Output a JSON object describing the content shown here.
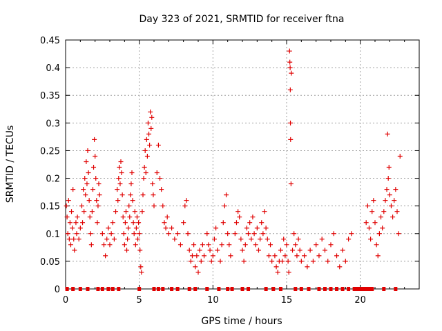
{
  "chart_data": {
    "type": "scatter",
    "title": "Day 323 of 2021, SRMTID for receiver ftna",
    "xlabel": "GPS time / hours",
    "ylabel": "SRMTID / TECUs",
    "xlim": [
      0,
      24
    ],
    "ylim": [
      0,
      0.45
    ],
    "xticks": [
      0,
      5,
      10,
      15,
      20
    ],
    "yticks": [
      0,
      0.05,
      0.1,
      0.15,
      0.2,
      0.25,
      0.3,
      0.35,
      0.4,
      0.45
    ],
    "ytick_labels": [
      "0",
      "0.05",
      "0.1",
      "0.15",
      "0.2",
      "0.25",
      "0.3",
      "0.35",
      "0.4",
      "0.45"
    ],
    "grid": true,
    "marker": "plus",
    "color": "#e00000",
    "series": [
      {
        "values": [
          [
            0.05,
            0.15
          ],
          [
            0.1,
            0.13
          ],
          [
            0.15,
            0.1
          ],
          [
            0.2,
            0.16
          ],
          [
            0.25,
            0.09
          ],
          [
            0.3,
            0.12
          ],
          [
            0.35,
            0.08
          ],
          [
            0.4,
            0.14
          ],
          [
            0.45,
            0.11
          ],
          [
            0.5,
            0.18
          ],
          [
            0.55,
            0.09
          ],
          [
            0.6,
            0.07
          ],
          [
            0.7,
            0.12
          ],
          [
            0.75,
            0.1
          ],
          [
            0.8,
            0.13
          ],
          [
            0.9,
            0.09
          ],
          [
            1.0,
            0.11
          ],
          [
            1.1,
            0.15
          ],
          [
            1.15,
            0.12
          ],
          [
            1.2,
            0.18
          ],
          [
            1.25,
            0.14
          ],
          [
            1.3,
            0.2
          ],
          [
            1.35,
            0.17
          ],
          [
            1.4,
            0.23
          ],
          [
            1.45,
            0.19
          ],
          [
            1.5,
            0.25
          ],
          [
            1.55,
            0.21
          ],
          [
            1.6,
            0.16
          ],
          [
            1.65,
            0.13
          ],
          [
            1.7,
            0.1
          ],
          [
            1.75,
            0.08
          ],
          [
            1.8,
            0.14
          ],
          [
            1.85,
            0.18
          ],
          [
            1.9,
            0.22
          ],
          [
            1.95,
            0.27
          ],
          [
            2.0,
            0.24
          ],
          [
            2.05,
            0.2
          ],
          [
            2.1,
            0.16
          ],
          [
            2.15,
            0.12
          ],
          [
            2.2,
            0.15
          ],
          [
            2.25,
            0.19
          ],
          [
            2.3,
            0.17
          ],
          [
            2.5,
            0.1
          ],
          [
            2.6,
            0.08
          ],
          [
            2.7,
            0.06
          ],
          [
            2.8,
            0.09
          ],
          [
            2.9,
            0.11
          ],
          [
            3.0,
            0.08
          ],
          [
            3.1,
            0.1
          ],
          [
            3.2,
            0.12
          ],
          [
            3.3,
            0.09
          ],
          [
            3.4,
            0.14
          ],
          [
            3.5,
            0.18
          ],
          [
            3.55,
            0.16
          ],
          [
            3.6,
            0.2
          ],
          [
            3.65,
            0.22
          ],
          [
            3.7,
            0.19
          ],
          [
            3.75,
            0.23
          ],
          [
            3.8,
            0.21
          ],
          [
            3.85,
            0.17
          ],
          [
            3.9,
            0.13
          ],
          [
            3.95,
            0.1
          ],
          [
            4.0,
            0.08
          ],
          [
            4.05,
            0.12
          ],
          [
            4.1,
            0.14
          ],
          [
            4.15,
            0.07
          ],
          [
            4.2,
            0.09
          ],
          [
            4.25,
            0.11
          ],
          [
            4.3,
            0.15
          ],
          [
            4.35,
            0.13
          ],
          [
            4.4,
            0.17
          ],
          [
            4.45,
            0.19
          ],
          [
            4.5,
            0.21
          ],
          [
            4.55,
            0.16
          ],
          [
            4.6,
            0.12
          ],
          [
            4.65,
            0.1
          ],
          [
            4.7,
            0.14
          ],
          [
            4.75,
            0.08
          ],
          [
            4.8,
            0.11
          ],
          [
            4.85,
            0.13
          ],
          [
            4.9,
            0.09
          ],
          [
            4.95,
            0.12
          ],
          [
            5.0,
            0.1
          ],
          [
            5.05,
            0.07
          ],
          [
            5.1,
            0.04
          ],
          [
            5.15,
            0.03
          ],
          [
            5.2,
            0.14
          ],
          [
            5.25,
            0.17
          ],
          [
            5.3,
            0.2
          ],
          [
            5.35,
            0.22
          ],
          [
            5.4,
            0.25
          ],
          [
            5.45,
            0.21
          ],
          [
            5.5,
            0.27
          ],
          [
            5.55,
            0.24
          ],
          [
            5.6,
            0.3
          ],
          [
            5.65,
            0.28
          ],
          [
            5.7,
            0.26
          ],
          [
            5.75,
            0.32
          ],
          [
            5.8,
            0.29
          ],
          [
            5.85,
            0.31
          ],
          [
            5.9,
            0.19
          ],
          [
            5.95,
            0.17
          ],
          [
            6.0,
            0.15
          ],
          [
            6.2,
            0.21
          ],
          [
            6.3,
            0.26
          ],
          [
            6.4,
            0.2
          ],
          [
            6.5,
            0.18
          ],
          [
            6.6,
            0.15
          ],
          [
            6.7,
            0.12
          ],
          [
            6.8,
            0.11
          ],
          [
            6.9,
            0.13
          ],
          [
            7.0,
            0.1
          ],
          [
            7.2,
            0.11
          ],
          [
            7.4,
            0.09
          ],
          [
            7.6,
            0.1
          ],
          [
            7.8,
            0.08
          ],
          [
            8.0,
            0.12
          ],
          [
            8.1,
            0.15
          ],
          [
            8.2,
            0.16
          ],
          [
            8.3,
            0.1
          ],
          [
            8.4,
            0.07
          ],
          [
            8.5,
            0.05
          ],
          [
            8.6,
            0.06
          ],
          [
            8.7,
            0.08
          ],
          [
            8.8,
            0.04
          ],
          [
            8.9,
            0.06
          ],
          [
            9.0,
            0.03
          ],
          [
            9.1,
            0.07
          ],
          [
            9.2,
            0.05
          ],
          [
            9.3,
            0.08
          ],
          [
            9.4,
            0.06
          ],
          [
            9.6,
            0.1
          ],
          [
            9.7,
            0.08
          ],
          [
            9.8,
            0.07
          ],
          [
            9.9,
            0.05
          ],
          [
            10.0,
            0.06
          ],
          [
            10.1,
            0.09
          ],
          [
            10.2,
            0.11
          ],
          [
            10.3,
            0.07
          ],
          [
            10.5,
            0.05
          ],
          [
            10.6,
            0.08
          ],
          [
            10.7,
            0.12
          ],
          [
            10.8,
            0.15
          ],
          [
            10.9,
            0.17
          ],
          [
            11.0,
            0.1
          ],
          [
            11.1,
            0.08
          ],
          [
            11.2,
            0.06
          ],
          [
            11.5,
            0.1
          ],
          [
            11.6,
            0.12
          ],
          [
            11.7,
            0.14
          ],
          [
            11.8,
            0.13
          ],
          [
            11.9,
            0.09
          ],
          [
            12.0,
            0.07
          ],
          [
            12.1,
            0.05
          ],
          [
            12.2,
            0.08
          ],
          [
            12.3,
            0.11
          ],
          [
            12.4,
            0.1
          ],
          [
            12.5,
            0.12
          ],
          [
            12.6,
            0.09
          ],
          [
            12.7,
            0.13
          ],
          [
            12.8,
            0.1
          ],
          [
            12.9,
            0.08
          ],
          [
            13.0,
            0.11
          ],
          [
            13.1,
            0.07
          ],
          [
            13.2,
            0.09
          ],
          [
            13.3,
            0.12
          ],
          [
            13.4,
            0.1
          ],
          [
            13.5,
            0.14
          ],
          [
            13.6,
            0.11
          ],
          [
            13.7,
            0.09
          ],
          [
            13.8,
            0.06
          ],
          [
            13.9,
            0.08
          ],
          [
            14.0,
            0.05
          ],
          [
            14.2,
            0.06
          ],
          [
            14.3,
            0.04
          ],
          [
            14.4,
            0.03
          ],
          [
            14.5,
            0.05
          ],
          [
            14.6,
            0.07
          ],
          [
            14.7,
            0.05
          ],
          [
            14.8,
            0.09
          ],
          [
            14.9,
            0.06
          ],
          [
            15.0,
            0.08
          ],
          [
            15.1,
            0.05
          ],
          [
            15.15,
            0.03
          ],
          [
            15.2,
            0.43
          ],
          [
            15.22,
            0.41
          ],
          [
            15.24,
            0.4
          ],
          [
            15.25,
            0.36
          ],
          [
            15.26,
            0.3
          ],
          [
            15.27,
            0.27
          ],
          [
            15.3,
            0.19
          ],
          [
            15.32,
            0.39
          ],
          [
            15.4,
            0.07
          ],
          [
            15.5,
            0.1
          ],
          [
            15.6,
            0.08
          ],
          [
            15.7,
            0.06
          ],
          [
            15.8,
            0.09
          ],
          [
            15.9,
            0.07
          ],
          [
            16.0,
            0.05
          ],
          [
            16.2,
            0.06
          ],
          [
            16.4,
            0.04
          ],
          [
            16.6,
            0.07
          ],
          [
            16.8,
            0.05
          ],
          [
            17.0,
            0.08
          ],
          [
            17.2,
            0.06
          ],
          [
            17.4,
            0.09
          ],
          [
            17.6,
            0.07
          ],
          [
            17.8,
            0.05
          ],
          [
            18.0,
            0.08
          ],
          [
            18.2,
            0.1
          ],
          [
            18.4,
            0.06
          ],
          [
            18.6,
            0.04
          ],
          [
            18.8,
            0.07
          ],
          [
            19.0,
            0.05
          ],
          [
            19.2,
            0.09
          ],
          [
            19.4,
            0.1
          ],
          [
            20.4,
            0.12
          ],
          [
            20.5,
            0.15
          ],
          [
            20.6,
            0.11
          ],
          [
            20.7,
            0.09
          ],
          [
            20.8,
            0.14
          ],
          [
            20.9,
            0.16
          ],
          [
            21.0,
            0.12
          ],
          [
            21.1,
            0.08
          ],
          [
            21.2,
            0.06
          ],
          [
            21.3,
            0.1
          ],
          [
            21.4,
            0.13
          ],
          [
            21.5,
            0.11
          ],
          [
            21.6,
            0.14
          ],
          [
            21.7,
            0.16
          ],
          [
            21.8,
            0.18
          ],
          [
            21.85,
            0.28
          ],
          [
            21.9,
            0.2
          ],
          [
            21.95,
            0.22
          ],
          [
            22.0,
            0.17
          ],
          [
            22.1,
            0.15
          ],
          [
            22.2,
            0.13
          ],
          [
            22.3,
            0.16
          ],
          [
            22.4,
            0.18
          ],
          [
            22.5,
            0.14
          ],
          [
            22.6,
            0.1
          ],
          [
            22.7,
            0.24
          ]
        ]
      }
    ],
    "zero_markers_x": [
      0.1,
      0.5,
      1.0,
      1.5,
      2.2,
      2.5,
      2.9,
      3.2,
      3.6,
      5.0,
      6.0,
      6.3,
      6.6,
      7.2,
      7.6,
      8.4,
      8.8,
      9.6,
      10.4,
      11.0,
      11.3,
      12.0,
      12.4,
      13.6,
      14.1,
      14.6,
      15.6,
      16.0,
      16.5,
      17.2,
      17.6,
      18.0,
      18.4,
      18.8,
      19.2,
      19.6,
      19.8,
      20.0,
      20.2,
      20.4,
      20.6,
      20.8,
      21.6,
      22.4
    ]
  }
}
